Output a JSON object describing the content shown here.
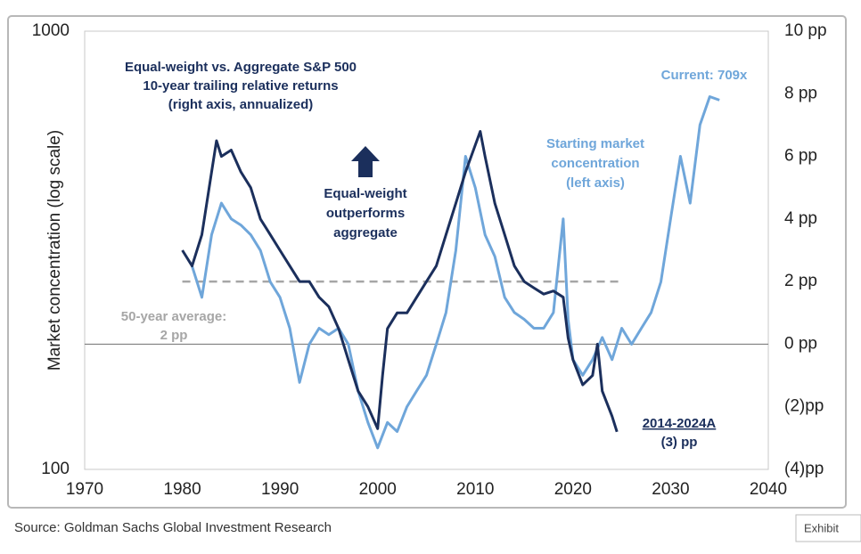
{
  "chart_data": {
    "type": "line",
    "y_axis_label": "Market concentration (log scale)",
    "xlim": [
      1970,
      2040
    ],
    "xticks": [
      1970,
      1980,
      1990,
      2000,
      2010,
      2020,
      2030,
      2040
    ],
    "ylim": [
      100,
      1000
    ],
    "yticks": [
      100,
      1000
    ],
    "log_scale_y": true,
    "y2lim": [
      -4,
      10
    ],
    "y2ticks": [
      {
        "value": -4,
        "label": "(4)pp"
      },
      {
        "value": -2,
        "label": "(2)pp"
      },
      {
        "value": 0,
        "label": "0 pp"
      },
      {
        "value": 2,
        "label": "2 pp"
      },
      {
        "value": 4,
        "label": "4 pp"
      },
      {
        "value": 6,
        "label": "6 pp"
      },
      {
        "value": 8,
        "label": "8 pp"
      },
      {
        "value": 10,
        "label": "10 pp"
      }
    ],
    "zero_line": true,
    "series": [
      {
        "name": "Starting market concentration (left axis)",
        "color": "#6fa6da",
        "x": [
          1981,
          1982,
          1983,
          1984,
          1985,
          1986,
          1987,
          1988,
          1989,
          1990,
          1991,
          1992,
          1993,
          1994,
          1995,
          1996,
          1997,
          1998,
          1999,
          2000,
          2001,
          2002,
          2003,
          2004,
          2005,
          2006,
          2007,
          2008,
          2009,
          2010,
          2011,
          2012,
          2013,
          2014,
          2015,
          2016,
          2017,
          2018,
          2019,
          2019.5,
          2020,
          2021,
          2022,
          2023,
          2024,
          2025,
          2026,
          2027,
          2028,
          2029,
          2030,
          2031,
          2032,
          2033,
          2034,
          2035
        ],
        "values": [
          291,
          247,
          343,
          405,
          373,
          361,
          343,
          316,
          268,
          247,
          210,
          158,
          193,
          210,
          203,
          210,
          193,
          151,
          128,
          112,
          128,
          122,
          139,
          151,
          164,
          193,
          228,
          316,
          518,
          439,
          343,
          306,
          247,
          228,
          220,
          210,
          210,
          228,
          373,
          220,
          178,
          164,
          178,
          200,
          178,
          210,
          193,
          210,
          228,
          268,
          373,
          518,
          405,
          611,
          709,
          696
        ]
      },
      {
        "name": "Equal-weight vs. Aggregate S&P 500 10-year trailing relative returns (right axis, annualized)",
        "color": "#1b2f5c",
        "axis": "y2",
        "x": [
          1980,
          1981,
          1982,
          1983,
          1983.5,
          1984,
          1985,
          1986,
          1987,
          1988,
          1989,
          1990,
          1991,
          1992,
          1993,
          1994,
          1995,
          1996,
          1997,
          1998,
          1999,
          2000,
          2000.5,
          2001,
          2002,
          2003,
          2004,
          2005,
          2006,
          2007,
          2008,
          2009,
          2010.5,
          2011,
          2012,
          2013,
          2014,
          2015,
          2016,
          2017,
          2018,
          2019,
          2019.5,
          2020,
          2021,
          2022,
          2022.5,
          2023,
          2024,
          2024.5
        ],
        "values": [
          3.0,
          2.5,
          3.5,
          5.5,
          6.5,
          6.0,
          6.2,
          5.5,
          5.0,
          4.0,
          3.5,
          3.0,
          2.5,
          2.0,
          2.0,
          1.5,
          1.2,
          0.5,
          -0.5,
          -1.5,
          -2.0,
          -2.7,
          -1.0,
          0.5,
          1.0,
          1.0,
          1.5,
          2.0,
          2.5,
          3.5,
          4.5,
          5.5,
          6.8,
          6.0,
          4.5,
          3.5,
          2.5,
          2.0,
          1.8,
          1.6,
          1.7,
          1.5,
          0.2,
          -0.5,
          -1.3,
          -1.0,
          0,
          -1.5,
          -2.3,
          -2.8
        ]
      }
    ],
    "reference_line": {
      "value": 2,
      "x": [
        1980,
        2025
      ],
      "color": "#a6a6a6",
      "lines": [
        "50-year average:",
        "2 pp"
      ]
    },
    "annotations": [
      {
        "lines": [
          "Equal-weight vs. Aggregate S&P 500",
          "10-year trailing relative returns",
          "(right axis, annualized)"
        ]
      },
      {
        "lines": [
          "Current: 709x"
        ]
      },
      {
        "lines": [
          "Starting market",
          "concentration",
          "(left axis)"
        ]
      },
      {
        "lines": [
          "Equal-weight",
          "outperforms",
          "aggregate"
        ]
      },
      {
        "lines": [
          "2014-2024A",
          "(3) pp"
        ]
      }
    ],
    "source": "Source: Goldman Sachs Global Investment Research",
    "exhibit_tab": "Exhibit"
  }
}
